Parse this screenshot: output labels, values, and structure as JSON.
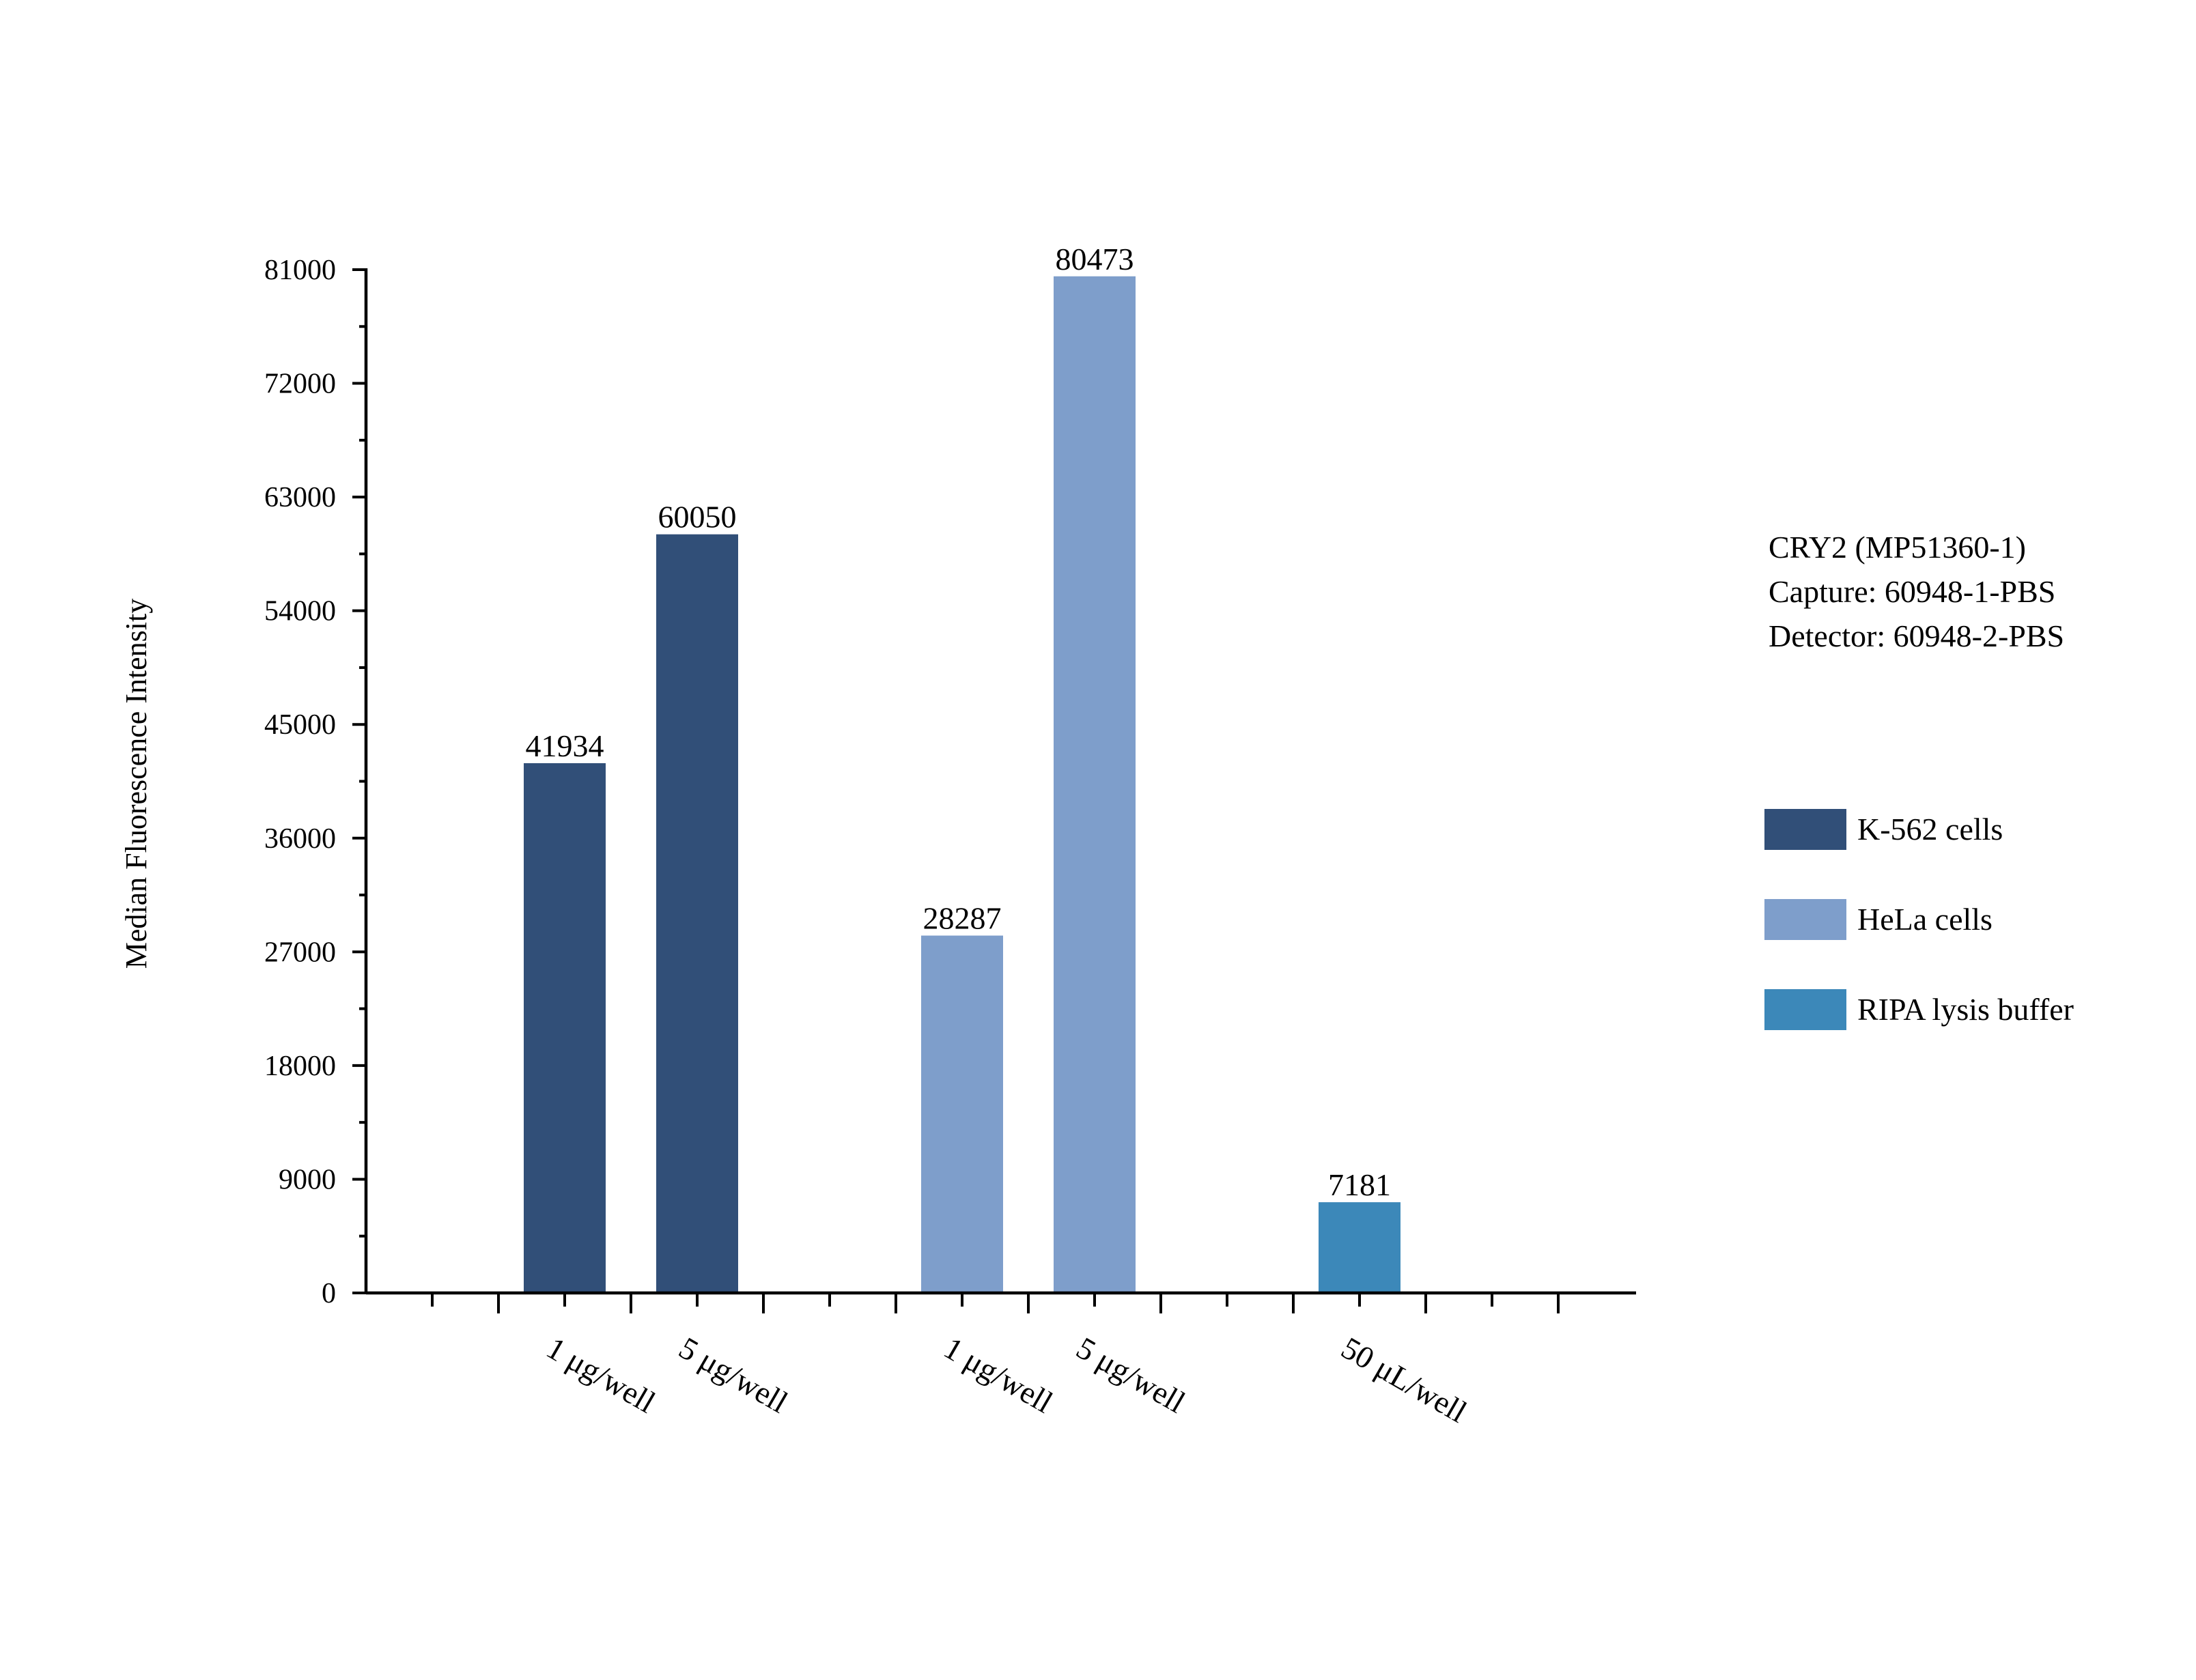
{
  "chart_data": {
    "type": "bar",
    "categories": [
      "1 μg/well",
      "5 μg/well",
      "1 μg/well",
      "5 μg/well",
      "50 μL/well"
    ],
    "values": [
      41934,
      60050,
      28287,
      80473,
      7181
    ],
    "bar_labels": [
      "41934",
      "60050",
      "28287",
      "80473",
      "7181"
    ],
    "bar_series": [
      0,
      0,
      1,
      1,
      2
    ],
    "bar_slots": [
      1,
      2,
      4,
      5,
      7
    ],
    "series": [
      {
        "name": "K-562 cells",
        "color": "#314f78"
      },
      {
        "name": "HeLa cells",
        "color": "#7e9ecb"
      },
      {
        "name": "RIPA lysis buffer",
        "color": "#3c88b9"
      }
    ],
    "ylabel": "Median Fluorescence Intensity",
    "xlabel": "",
    "ylim": [
      0,
      81000
    ],
    "yticks": [
      "0",
      "9000",
      "18000",
      "27000",
      "36000",
      "45000",
      "54000",
      "63000",
      "72000",
      "81000"
    ],
    "x_slots": 9,
    "grid": false,
    "legend_position": "right",
    "annotation_lines": [
      "CRY2 (MP51360-1)",
      "Capture: 60948-1-PBS",
      "Detector: 60948-2-PBS"
    ]
  }
}
